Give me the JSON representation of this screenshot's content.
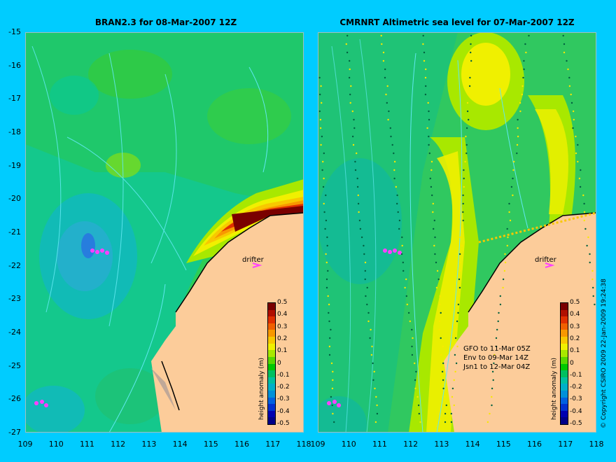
{
  "left_panel": {
    "title": "BRAN2.3 for 08-Mar-2007 12Z"
  },
  "right_panel": {
    "title": "CMRNRT Altimetric sea level  for 07-Mar-2007 12Z"
  },
  "y_ticks": [
    "-15",
    "-16",
    "-17",
    "-18",
    "-19",
    "-20",
    "-21",
    "-22",
    "-23",
    "-24",
    "-25",
    "-26",
    "-27"
  ],
  "x_ticks": [
    "109",
    "110",
    "111",
    "112",
    "113",
    "114",
    "115",
    "116",
    "117",
    "118"
  ],
  "colorbar": {
    "label": "height anomaly (m)",
    "ticks": [
      "0.5",
      "0.4",
      "0.3",
      "0.2",
      "0.1",
      "0",
      "-0.1",
      "-0.2",
      "-0.3",
      "-0.4",
      "-0.5"
    ],
    "colors": [
      "#7a0000",
      "#b01000",
      "#e03000",
      "#f06000",
      "#f89800",
      "#f8c800",
      "#f0f000",
      "#a8e800",
      "#58d800",
      "#00c800",
      "#00c060",
      "#00c0a0",
      "#00b0c8",
      "#0090d8",
      "#0060e0",
      "#0030d0",
      "#0000b0",
      "#000088"
    ]
  },
  "drifter_label": "drifter",
  "satellite_notes": [
    "GFO to 11-Mar 05Z",
    "Env to 09-Mar 14Z",
    "Jsn1 to 12-Mar 04Z"
  ],
  "copyright": "© Copyright CSIRO 2009   22-Jan-2009 19:24:38"
}
